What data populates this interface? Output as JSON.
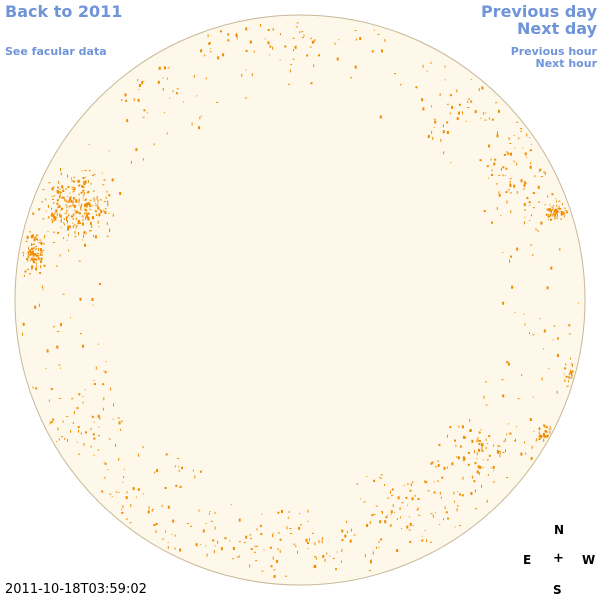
{
  "nav": {
    "back_label": "Back to 2011",
    "facular_label": "See facular data",
    "prev_day_label": "Previous day",
    "next_day_label": "Next day",
    "prev_hour_label": "Previous hour",
    "next_hour_label": "Next hour"
  },
  "compass": {
    "north": "N",
    "east": "E",
    "center": "+",
    "west": "W",
    "south": "S"
  },
  "timestamp": "2011-10-18T03:59:02",
  "colors": {
    "link": "#6f94d8",
    "disk_fill": "#fdf8ea",
    "disk_edge": "#c8b898",
    "magnetic_marks": "#f08c00"
  }
}
